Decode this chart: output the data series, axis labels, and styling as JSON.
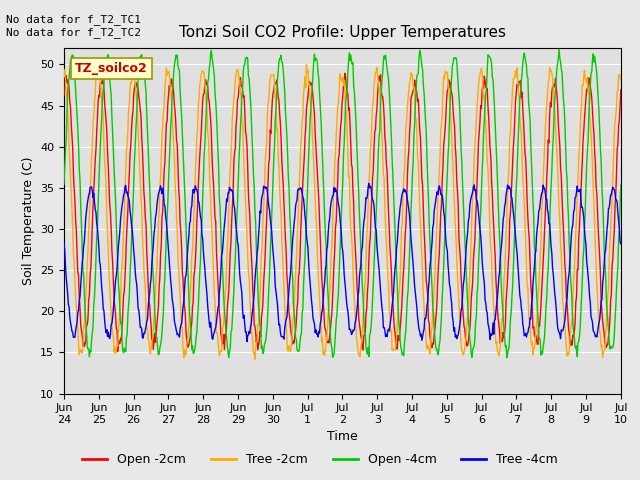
{
  "title": "Tonzi Soil CO2 Profile: Upper Temperatures",
  "ylabel": "Soil Temperature (C)",
  "xlabel": "Time",
  "annotation_top_left": "No data for f_T2_TC1\nNo data for f_T2_TC2",
  "legend_label": "TZ_soilco2",
  "ylim": [
    10,
    52
  ],
  "yticks": [
    10,
    15,
    20,
    25,
    30,
    35,
    40,
    45,
    50
  ],
  "x_tick_labels": [
    "Jun\n24",
    "Jun\n25",
    "Jun\n26",
    "Jun\n27",
    "Jun\n28",
    "Jun\n29",
    "Jun\n30",
    "Jul\n1",
    "Jul\n2",
    "Jul\n3",
    "Jul\n4",
    "Jul\n5",
    "Jul\n6",
    "Jul\n7",
    "Jul\n8",
    "Jul\n9",
    "Jul\n10"
  ],
  "series_labels": [
    "Open -2cm",
    "Tree -2cm",
    "Open -4cm",
    "Tree -4cm"
  ],
  "series_colors": [
    "#ff0000",
    "#ffaa00",
    "#00cc00",
    "#0000ff"
  ],
  "background_color": "#e8e8e8",
  "plot_bg_color": "#e0e0e0",
  "n_days": 16,
  "pts_per_day": 48,
  "open2_params": {
    "amplitude": 16,
    "mean": 32,
    "phase_shift": 0.0,
    "noise": 0.5
  },
  "tree2_params": {
    "amplitude": 17,
    "mean": 32,
    "phase_shift": 0.1,
    "noise": 0.5
  },
  "open4_params": {
    "amplitude": 18,
    "mean": 33,
    "phase_shift": -0.15,
    "noise": 0.4
  },
  "tree4_params": {
    "amplitude": 9,
    "mean": 26,
    "phase_shift": 0.3,
    "noise": 0.3
  }
}
